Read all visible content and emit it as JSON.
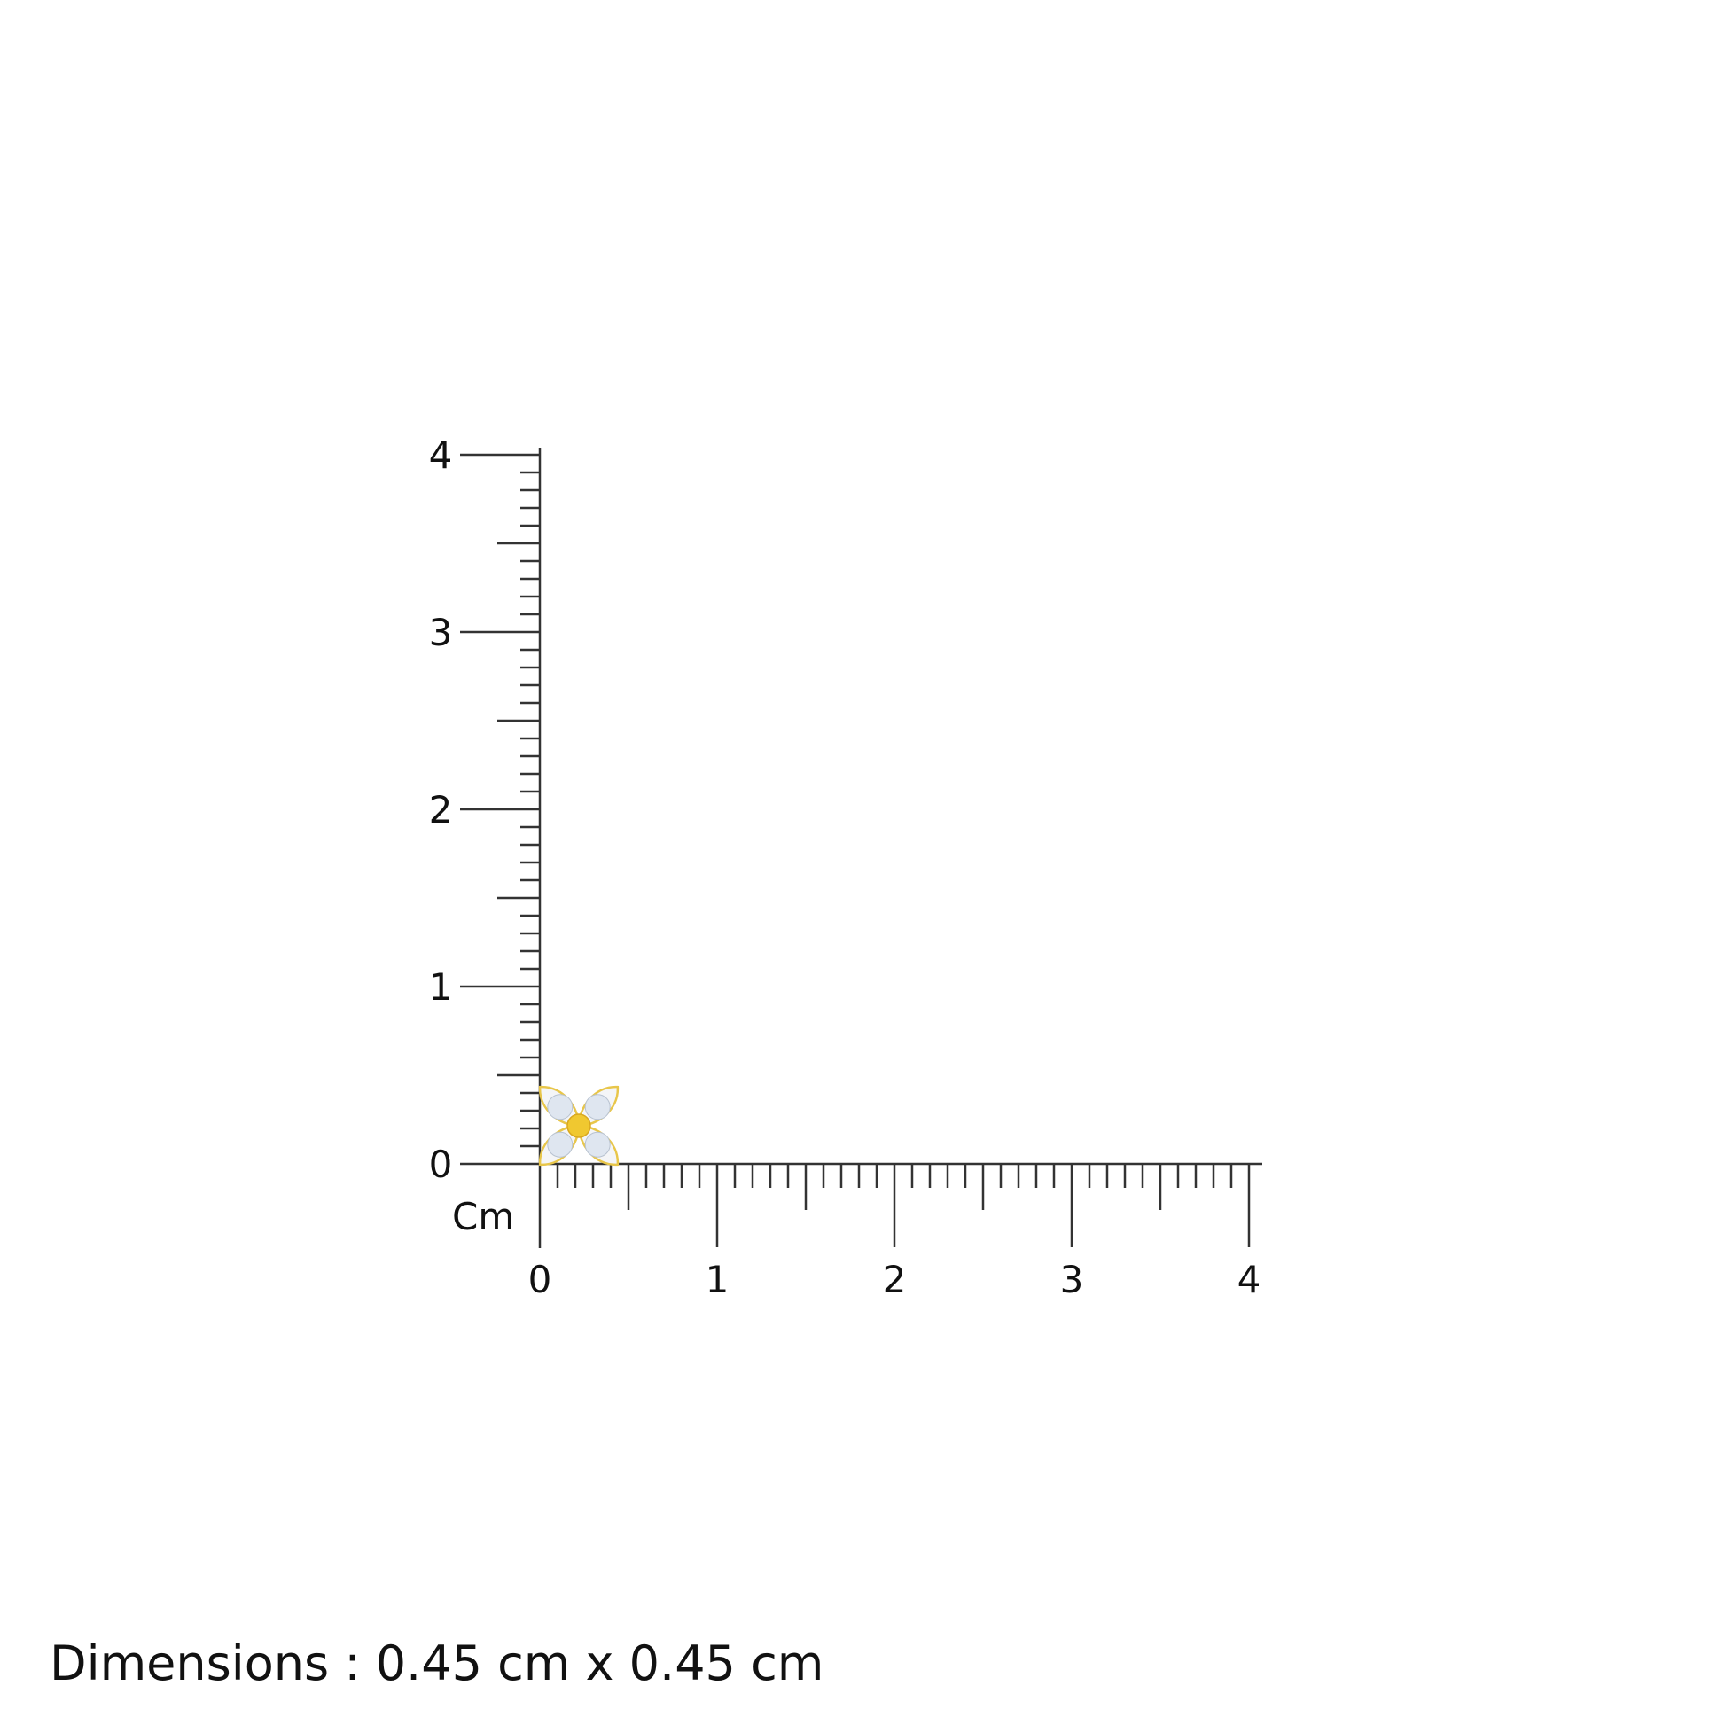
{
  "ruler": {
    "unit_label": "Cm",
    "x_ticks": [
      "0",
      "1",
      "2",
      "3",
      "4"
    ],
    "y_ticks": [
      "0",
      "1",
      "2",
      "3",
      "4"
    ],
    "range_cm": [
      0,
      4
    ],
    "minor_step_cm": 0.1,
    "line_color": "#333333"
  },
  "product": {
    "kind": "flower-earring-icon",
    "metal_color": "#e8c64a",
    "stone_color": "#dfe6f0"
  },
  "caption": {
    "text": "Dimensions : 0.45 cm x 0.45 cm"
  }
}
